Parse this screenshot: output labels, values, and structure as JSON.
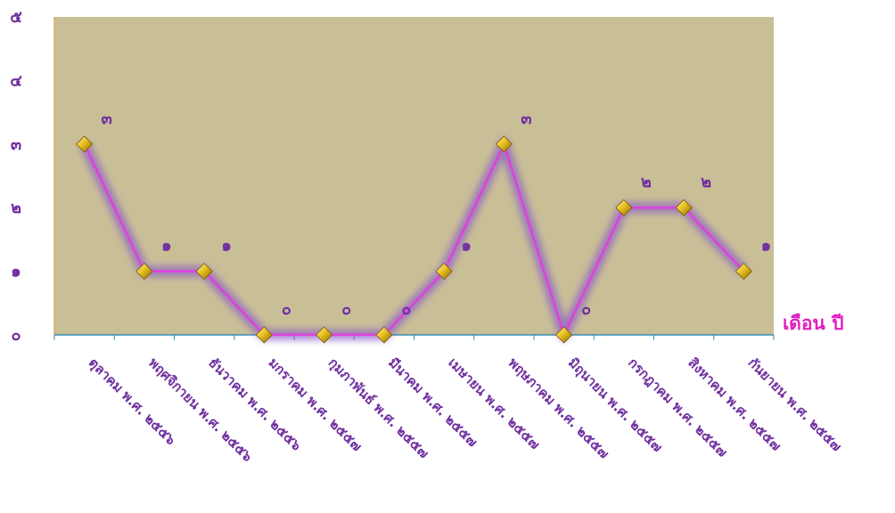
{
  "chart_data": {
    "type": "line",
    "title": "",
    "xlabel": "เดือน ปี",
    "ylabel": "",
    "ylim": [
      0,
      5
    ],
    "y_tick_labels": [
      "๐",
      "๑",
      "๒",
      "๓",
      "๔",
      "๕"
    ],
    "categories": [
      "ตุลาคม พ.ศ. ๒๕๕๖",
      "พฤศจิกายน พ.ศ. ๒๕๕๖",
      "ธันวาคม พ.ศ. ๒๕๕๖",
      "มกราคม พ.ศ. ๒๕๕๗",
      "กุมภาพันธ์ พ.ศ. ๒๕๕๗",
      "มีนาคม พ.ศ. ๒๕๕๗",
      "เมษายน พ.ศ. ๒๕๕๗",
      "พฤษภาคม พ.ศ. ๒๕๕๗",
      "มิถุนายน พ.ศ. ๒๕๕๗",
      "กรกฎาคม พ.ศ. ๒๕๕๗",
      "สิงหาคม พ.ศ. ๒๕๕๗",
      "กันยายน พ.ศ. ๒๕๕๗"
    ],
    "series": [
      {
        "values": [
          3,
          1,
          1,
          0,
          0,
          0,
          1,
          3,
          0,
          2,
          2,
          1
        ],
        "data_labels": [
          "๓",
          "๑",
          "๑",
          "๐",
          "๐",
          "๐",
          "๑",
          "๓",
          "๐",
          "๒",
          "๒",
          "๑"
        ]
      }
    ],
    "grid": false,
    "colors": {
      "plot_background": "#c9bf97",
      "line": "#e040e0",
      "line_glow": "#8a5cc8",
      "marker": "#e8c020",
      "text": "#7030a0",
      "axis_title": "#e020c0",
      "axis": "#3a8ab0"
    }
  }
}
